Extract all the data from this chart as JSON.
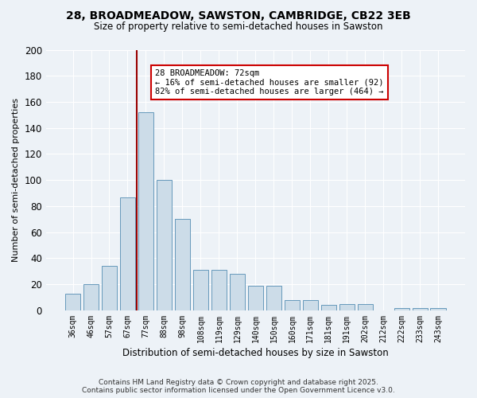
{
  "title1": "28, BROADMEADOW, SAWSTON, CAMBRIDGE, CB22 3EB",
  "title2": "Size of property relative to semi-detached houses in Sawston",
  "xlabel": "Distribution of semi-detached houses by size in Sawston",
  "ylabel": "Number of semi-detached properties",
  "categories": [
    "36sqm",
    "46sqm",
    "57sqm",
    "67sqm",
    "77sqm",
    "88sqm",
    "98sqm",
    "108sqm",
    "119sqm",
    "129sqm",
    "140sqm",
    "150sqm",
    "160sqm",
    "171sqm",
    "181sqm",
    "191sqm",
    "202sqm",
    "212sqm",
    "222sqm",
    "233sqm",
    "243sqm"
  ],
  "values": [
    13,
    20,
    34,
    87,
    152,
    100,
    70,
    31,
    31,
    28,
    19,
    19,
    8,
    8,
    4,
    5,
    5,
    0,
    2,
    2,
    2
  ],
  "bar_color": "#ccdce8",
  "bar_edge_color": "#6699bb",
  "vline_x": 3.5,
  "vline_color": "#990000",
  "annotation_text": "28 BROADMEADOW: 72sqm\n← 16% of semi-detached houses are smaller (92)\n82% of semi-detached houses are larger (464) →",
  "annotation_box_color": "#ffffff",
  "annotation_box_edge": "#cc0000",
  "ylim": [
    0,
    200
  ],
  "yticks": [
    0,
    20,
    40,
    60,
    80,
    100,
    120,
    140,
    160,
    180,
    200
  ],
  "footer1": "Contains HM Land Registry data © Crown copyright and database right 2025.",
  "footer2": "Contains public sector information licensed under the Open Government Licence v3.0.",
  "bg_color": "#edf2f7"
}
